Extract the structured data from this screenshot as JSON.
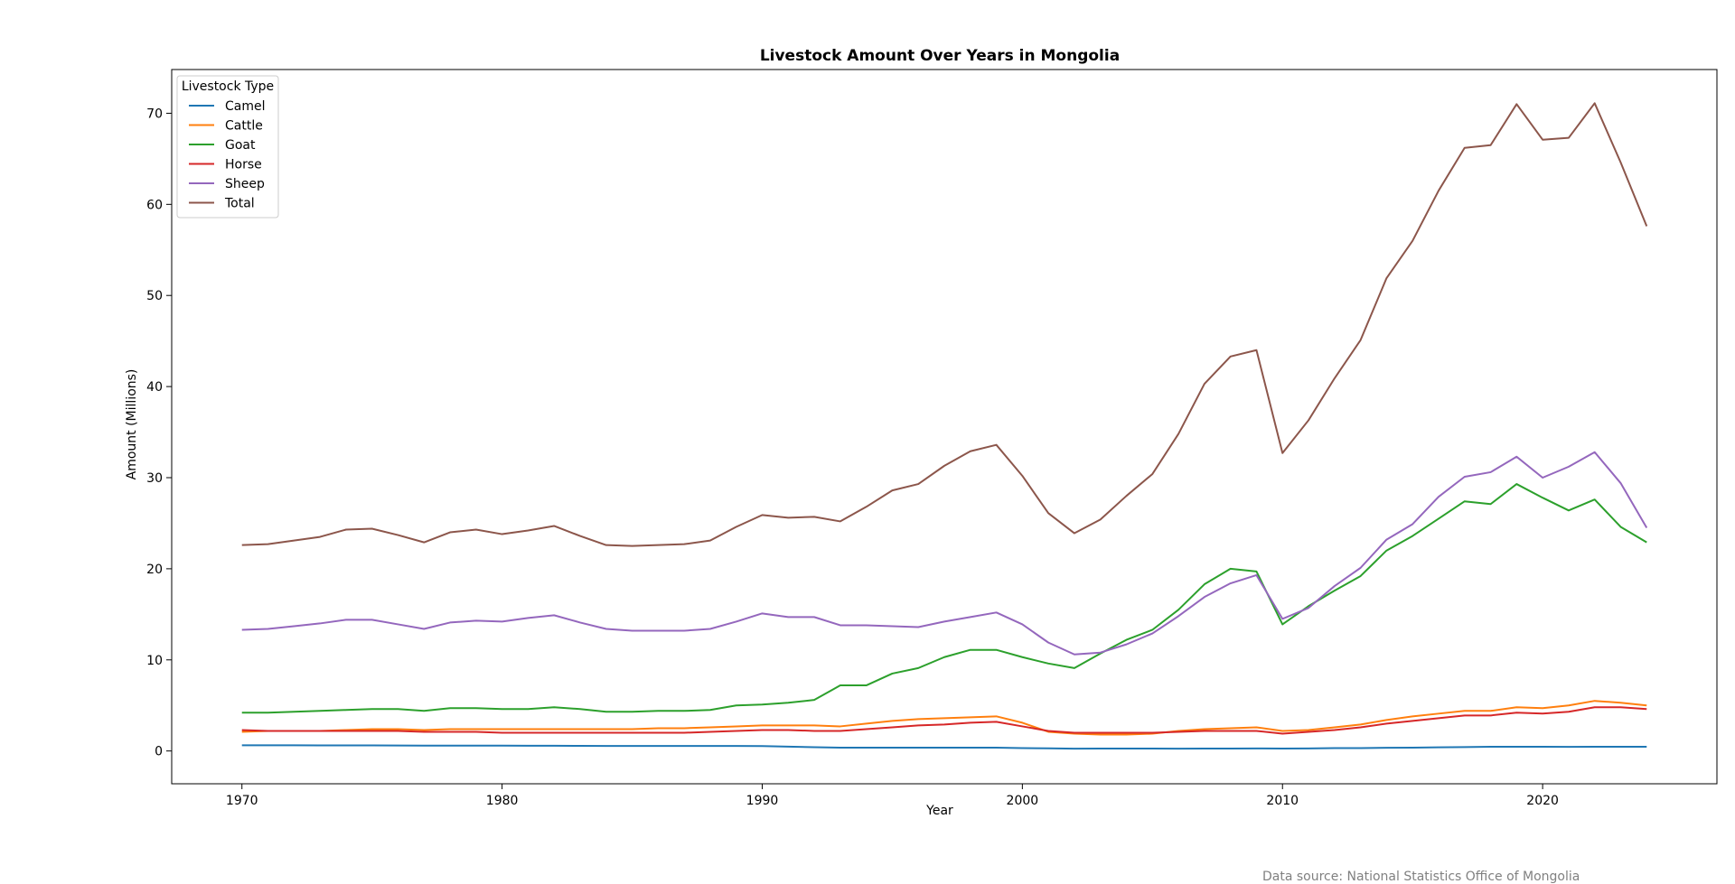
{
  "chart_data": {
    "type": "line",
    "title": "Livestock Amount Over Years in Mongolia",
    "xlabel": "Year",
    "ylabel": "Amount (Millions)",
    "xlim": [
      1967.3,
      2026.7
    ],
    "ylim": [
      -3.6,
      74.8
    ],
    "xticks": [
      1970,
      1980,
      1990,
      2000,
      2010,
      2020
    ],
    "yticks": [
      0,
      10,
      20,
      30,
      40,
      50,
      60,
      70
    ],
    "grid": false,
    "legend": {
      "title": "Livestock Type",
      "placement": "top-left"
    },
    "x": [
      1970,
      1971,
      1972,
      1973,
      1974,
      1975,
      1976,
      1977,
      1978,
      1979,
      1980,
      1981,
      1982,
      1983,
      1984,
      1985,
      1986,
      1987,
      1988,
      1989,
      1990,
      1991,
      1992,
      1993,
      1994,
      1995,
      1996,
      1997,
      1998,
      1999,
      2000,
      2001,
      2002,
      2003,
      2004,
      2005,
      2006,
      2007,
      2008,
      2009,
      2010,
      2011,
      2012,
      2013,
      2014,
      2015,
      2016,
      2017,
      2018,
      2019,
      2020,
      2021,
      2022,
      2023,
      2024
    ],
    "series": [
      {
        "name": "Camel",
        "color": "#1f77b4",
        "values": [
          0.63,
          0.63,
          0.62,
          0.61,
          0.61,
          0.61,
          0.6,
          0.59,
          0.59,
          0.59,
          0.59,
          0.58,
          0.57,
          0.56,
          0.55,
          0.55,
          0.55,
          0.55,
          0.55,
          0.55,
          0.54,
          0.48,
          0.42,
          0.37,
          0.37,
          0.37,
          0.36,
          0.36,
          0.36,
          0.36,
          0.32,
          0.29,
          0.25,
          0.26,
          0.26,
          0.26,
          0.25,
          0.26,
          0.27,
          0.28,
          0.27,
          0.28,
          0.31,
          0.32,
          0.35,
          0.37,
          0.4,
          0.43,
          0.46,
          0.47,
          0.47,
          0.45,
          0.46,
          0.47,
          0.47
        ]
      },
      {
        "name": "Cattle",
        "color": "#ff7f0e",
        "values": [
          2.1,
          2.2,
          2.2,
          2.2,
          2.3,
          2.4,
          2.4,
          2.3,
          2.4,
          2.4,
          2.4,
          2.4,
          2.4,
          2.4,
          2.4,
          2.4,
          2.5,
          2.5,
          2.6,
          2.7,
          2.8,
          2.8,
          2.8,
          2.7,
          3.0,
          3.3,
          3.5,
          3.6,
          3.7,
          3.8,
          3.1,
          2.1,
          1.9,
          1.8,
          1.8,
          1.9,
          2.2,
          2.4,
          2.5,
          2.6,
          2.2,
          2.3,
          2.6,
          2.9,
          3.4,
          3.8,
          4.1,
          4.4,
          4.4,
          4.8,
          4.7,
          5.0,
          5.5,
          5.3,
          5.0
        ]
      },
      {
        "name": "Goat",
        "color": "#2ca02c",
        "values": [
          4.2,
          4.2,
          4.3,
          4.4,
          4.5,
          4.6,
          4.6,
          4.4,
          4.7,
          4.7,
          4.6,
          4.6,
          4.8,
          4.6,
          4.3,
          4.3,
          4.4,
          4.4,
          4.5,
          5.0,
          5.1,
          5.3,
          5.6,
          7.2,
          7.2,
          8.5,
          9.1,
          10.3,
          11.1,
          11.1,
          10.3,
          9.6,
          9.1,
          10.7,
          12.2,
          13.3,
          15.5,
          18.3,
          20.0,
          19.7,
          13.9,
          15.9,
          17.6,
          19.2,
          22.0,
          23.6,
          25.5,
          27.4,
          27.1,
          29.3,
          27.8,
          26.4,
          27.6,
          24.6,
          22.9
        ]
      },
      {
        "name": "Horse",
        "color": "#d62728",
        "values": [
          2.3,
          2.2,
          2.2,
          2.2,
          2.2,
          2.2,
          2.2,
          2.1,
          2.1,
          2.1,
          2.0,
          2.0,
          2.0,
          2.0,
          2.0,
          2.0,
          2.0,
          2.0,
          2.1,
          2.2,
          2.3,
          2.3,
          2.2,
          2.2,
          2.4,
          2.6,
          2.8,
          2.9,
          3.1,
          3.2,
          2.7,
          2.2,
          2.0,
          2.0,
          2.0,
          2.0,
          2.1,
          2.2,
          2.2,
          2.2,
          1.9,
          2.1,
          2.3,
          2.6,
          3.0,
          3.3,
          3.6,
          3.9,
          3.9,
          4.2,
          4.1,
          4.3,
          4.8,
          4.8,
          4.6
        ]
      },
      {
        "name": "Sheep",
        "color": "#9467bd",
        "values": [
          13.3,
          13.4,
          13.7,
          14.0,
          14.4,
          14.4,
          13.9,
          13.4,
          14.1,
          14.3,
          14.2,
          14.6,
          14.9,
          14.1,
          13.4,
          13.2,
          13.2,
          13.2,
          13.4,
          14.2,
          15.1,
          14.7,
          14.7,
          13.8,
          13.8,
          13.7,
          13.6,
          14.2,
          14.7,
          15.2,
          13.9,
          11.9,
          10.6,
          10.8,
          11.7,
          12.9,
          14.8,
          16.9,
          18.4,
          19.3,
          14.5,
          15.7,
          18.1,
          20.1,
          23.2,
          24.9,
          27.9,
          30.1,
          30.6,
          32.3,
          30.0,
          31.2,
          32.8,
          29.4,
          24.5
        ]
      },
      {
        "name": "Total",
        "color": "#8c564b",
        "values": [
          22.6,
          22.7,
          23.1,
          23.5,
          24.3,
          24.4,
          23.7,
          22.9,
          24.0,
          24.3,
          23.8,
          24.2,
          24.7,
          23.6,
          22.6,
          22.5,
          22.6,
          22.7,
          23.1,
          24.6,
          25.9,
          25.6,
          25.7,
          25.2,
          26.8,
          28.6,
          29.3,
          31.3,
          32.9,
          33.6,
          30.2,
          26.1,
          23.9,
          25.4,
          28.0,
          30.4,
          34.8,
          40.3,
          43.3,
          44.0,
          32.7,
          36.3,
          40.9,
          45.1,
          51.9,
          56.0,
          61.5,
          66.2,
          66.5,
          71.0,
          67.1,
          67.3,
          71.1,
          64.6,
          57.6
        ]
      }
    ]
  },
  "source_note": "Data source: National Statistics Office of Mongolia"
}
